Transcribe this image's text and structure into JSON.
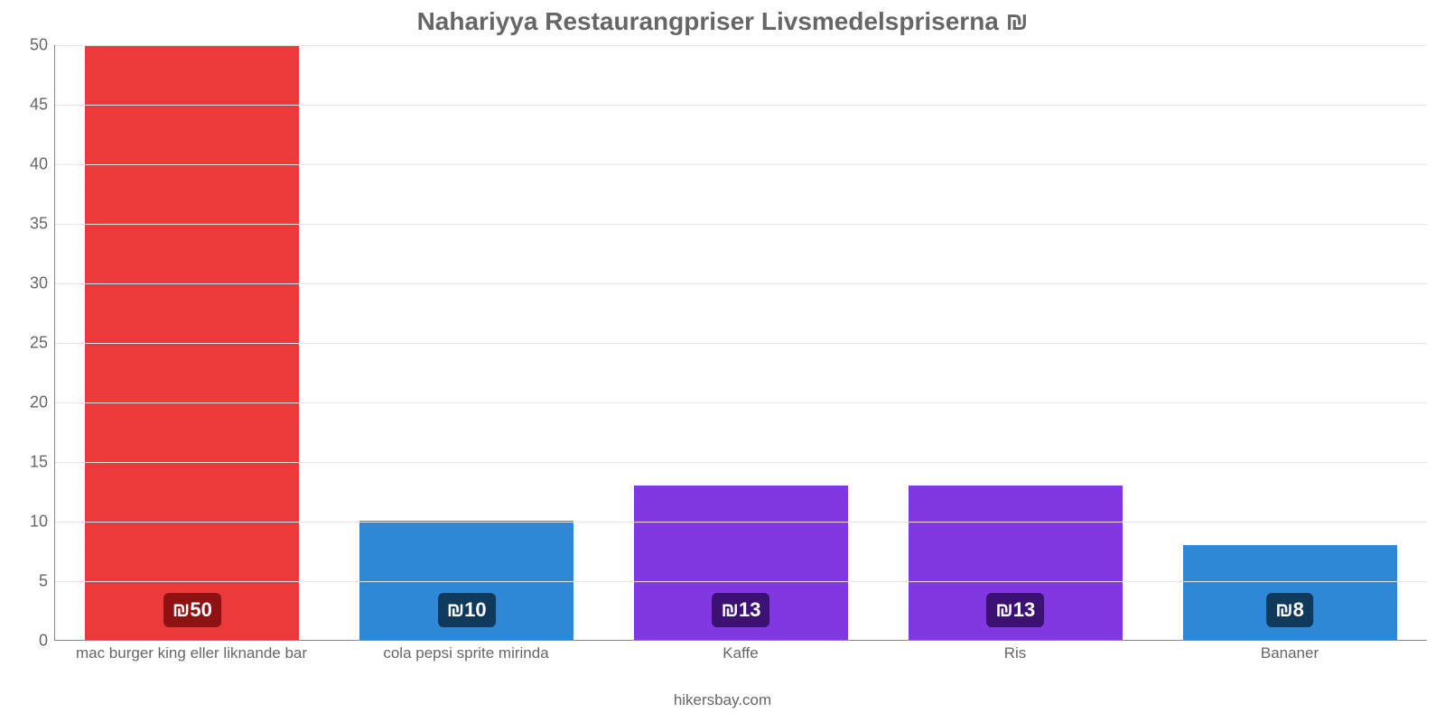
{
  "chart": {
    "type": "bar",
    "title": "Nahariyya Restaurangpriser Livsmedelspriserna ₪",
    "title_color": "#666666",
    "title_fontsize": 28,
    "background_color": "#ffffff",
    "grid_color": "#e6e6e6",
    "axis_color": "#888888",
    "label_color": "#666666",
    "xlabel_fontsize": 17,
    "ylabel_fontsize": 18,
    "badge_fontsize": 22,
    "ylim": [
      0,
      50
    ],
    "ytick_step": 5,
    "yticks": [
      0,
      5,
      10,
      15,
      20,
      25,
      30,
      35,
      40,
      45,
      50
    ],
    "bar_width_pct": 78,
    "currency_symbol": "₪",
    "categories": [
      "mac burger king eller liknande bar",
      "cola pepsi sprite mirinda",
      "Kaffe",
      "Ris",
      "Bananer"
    ],
    "values": [
      50,
      10,
      13,
      13,
      8
    ],
    "value_labels": [
      "₪50",
      "₪10",
      "₪13",
      "₪13",
      "₪8"
    ],
    "bar_colors": [
      "#eb3a3a",
      "#2f88d6",
      "#8138e0",
      "#8138e0",
      "#2f88d6"
    ],
    "badge_colors": [
      "#8e1212",
      "#0f3a5c",
      "#3b1173",
      "#3b1173",
      "#0f3a5c"
    ],
    "footer": "hikersbay.com"
  }
}
